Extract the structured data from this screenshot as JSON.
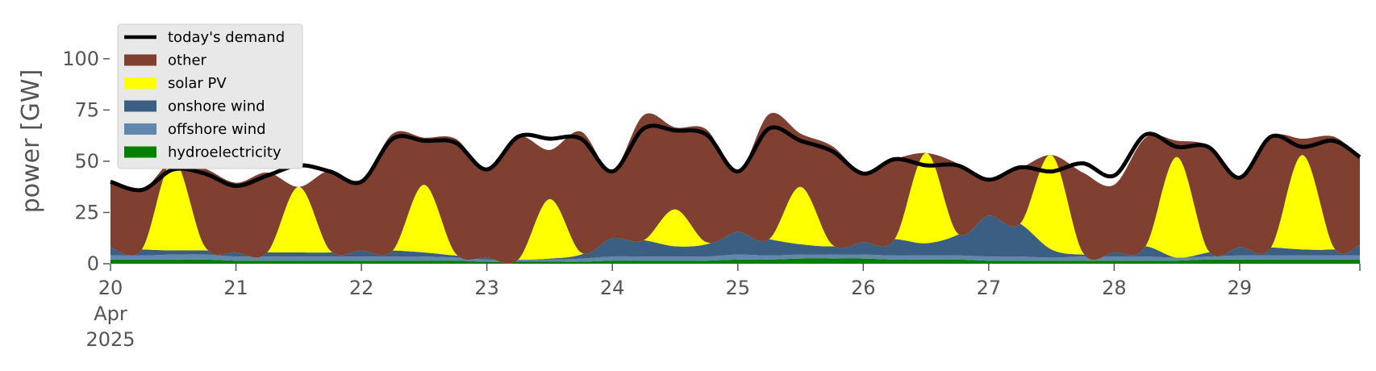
{
  "chart_data": {
    "type": "area",
    "stacked": true,
    "ylabel": "power [GW]",
    "xlabel": "",
    "ylim": [
      0,
      120
    ],
    "xlim": [
      "2025-04-20T00:00",
      "2025-04-29T23:00"
    ],
    "grid": false,
    "legend_position": "top-left",
    "y_ticks": [
      0,
      25,
      50,
      75,
      100
    ],
    "x_ticks": [
      {
        "value": "2025-04-20",
        "label": "20"
      },
      {
        "value": "2025-04-21",
        "label": "21"
      },
      {
        "value": "2025-04-22",
        "label": "22"
      },
      {
        "value": "2025-04-23",
        "label": "23"
      },
      {
        "value": "2025-04-24",
        "label": "24"
      },
      {
        "value": "2025-04-25",
        "label": "25"
      },
      {
        "value": "2025-04-26",
        "label": "26"
      },
      {
        "value": "2025-04-27",
        "label": "27"
      },
      {
        "value": "2025-04-28",
        "label": "28"
      },
      {
        "value": "2025-04-29",
        "label": "29"
      }
    ],
    "x_tick_sublabels": [
      "Apr",
      "2025"
    ],
    "legend": [
      {
        "name": "today's demand",
        "color": "#000000",
        "kind": "line"
      },
      {
        "name": "other",
        "color": "#7f4032",
        "kind": "patch"
      },
      {
        "name": "solar PV",
        "color": "#ffff00",
        "kind": "patch"
      },
      {
        "name": "onshore wind",
        "color": "#3b5f82",
        "kind": "patch"
      },
      {
        "name": "offshore wind",
        "color": "#6387aa",
        "kind": "patch"
      },
      {
        "name": "hydroelectricity",
        "color": "#008000",
        "kind": "patch"
      }
    ],
    "x": [
      "2025-04-20T00:00",
      "2025-04-20T06:00",
      "2025-04-20T12:00",
      "2025-04-20T18:00",
      "2025-04-21T00:00",
      "2025-04-21T06:00",
      "2025-04-21T12:00",
      "2025-04-21T18:00",
      "2025-04-22T00:00",
      "2025-04-22T06:00",
      "2025-04-22T12:00",
      "2025-04-22T18:00",
      "2025-04-23T00:00",
      "2025-04-23T06:00",
      "2025-04-23T12:00",
      "2025-04-23T18:00",
      "2025-04-24T00:00",
      "2025-04-24T06:00",
      "2025-04-24T12:00",
      "2025-04-24T18:00",
      "2025-04-25T00:00",
      "2025-04-25T06:00",
      "2025-04-25T12:00",
      "2025-04-25T18:00",
      "2025-04-26T00:00",
      "2025-04-26T06:00",
      "2025-04-26T12:00",
      "2025-04-26T18:00",
      "2025-04-27T00:00",
      "2025-04-27T06:00",
      "2025-04-27T12:00",
      "2025-04-27T18:00",
      "2025-04-28T00:00",
      "2025-04-28T06:00",
      "2025-04-28T12:00",
      "2025-04-28T18:00",
      "2025-04-29T00:00",
      "2025-04-29T06:00",
      "2025-04-29T12:00",
      "2025-04-29T18:00",
      "2025-04-29T23:00"
    ],
    "series": [
      {
        "name": "hydroelectricity",
        "color": "#008000",
        "values": [
          2,
          2,
          2,
          2,
          1.5,
          1.5,
          1.5,
          1.5,
          1.5,
          1.5,
          1.5,
          1.5,
          1,
          1,
          1,
          1,
          1.5,
          1.5,
          1.5,
          1.5,
          2,
          2,
          2.5,
          2.5,
          2.5,
          2,
          2,
          2,
          1.5,
          1.5,
          1.5,
          1.5,
          1.5,
          1.5,
          1.5,
          2,
          2,
          2,
          2,
          2,
          2
        ]
      },
      {
        "name": "offshore wind",
        "color": "#6387aa",
        "values": [
          2,
          2,
          2.5,
          2.5,
          2,
          2,
          2,
          2,
          2,
          2,
          2,
          1.5,
          1,
          1,
          1,
          1.5,
          2,
          2,
          2,
          2,
          2.5,
          2,
          2,
          2,
          2,
          2,
          2,
          2,
          2,
          2,
          1.5,
          2,
          2,
          2,
          1.5,
          1.5,
          2,
          2,
          2,
          2,
          2
        ]
      },
      {
        "name": "onshore wind",
        "color": "#3b5f82",
        "values": [
          4,
          3,
          2,
          2,
          2,
          2,
          2,
          2,
          3,
          3,
          2,
          1,
          1,
          0,
          0.5,
          2,
          9,
          8,
          5,
          6,
          11,
          8,
          5,
          4,
          6,
          8,
          6,
          10,
          20,
          16,
          4,
          1,
          2,
          5,
          0,
          2,
          4,
          4,
          3,
          3,
          5
        ]
      },
      {
        "name": "solar PV",
        "color": "#ffff00",
        "values": [
          0,
          0,
          44,
          2,
          0,
          0,
          32,
          1,
          0,
          0,
          33,
          1,
          0,
          0,
          29,
          1,
          0,
          0,
          18,
          1,
          0,
          0,
          28,
          1,
          0,
          0,
          44,
          1,
          0,
          0,
          46,
          1,
          0,
          0,
          49,
          1,
          0,
          0,
          46,
          1,
          0
        ]
      },
      {
        "name": "other",
        "color": "#7f4032",
        "values": [
          32,
          29,
          0,
          38,
          34,
          39,
          0,
          39,
          34,
          57,
          23,
          56,
          43,
          60,
          24,
          59,
          33,
          61,
          40,
          55,
          29,
          61,
          26,
          48,
          34,
          39,
          0,
          34,
          17,
          27,
          0,
          39,
          33,
          53,
          8,
          51,
          34,
          54,
          8,
          54,
          43
        ]
      }
    ],
    "demand": {
      "name": "today's demand",
      "color": "#000000",
      "values": [
        40,
        36,
        46,
        44,
        38,
        43,
        48,
        45,
        40,
        61,
        60,
        59,
        46,
        62,
        61,
        61,
        45,
        66,
        65,
        63,
        45,
        66,
        60,
        55,
        44,
        51,
        48,
        48,
        41,
        47,
        45,
        49,
        43,
        63,
        57,
        57,
        42,
        62,
        57,
        60,
        52
      ]
    }
  }
}
